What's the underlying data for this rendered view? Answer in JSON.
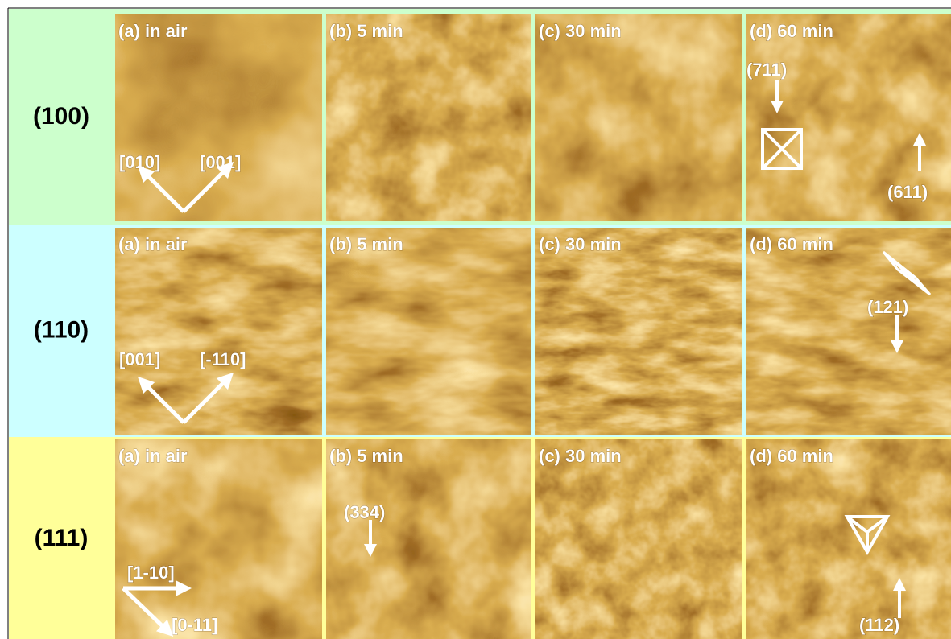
{
  "rows": [
    {
      "label": "(100)",
      "panels": [
        {
          "caption": "(a) in air",
          "annotations": [
            "[010]",
            "[001]"
          ]
        },
        {
          "caption": "(b) 5 min",
          "annotations": []
        },
        {
          "caption": "(c) 30 min",
          "annotations": []
        },
        {
          "caption": "(d) 60 min",
          "annotations": [
            "(711)",
            "(611)"
          ]
        }
      ]
    },
    {
      "label": "(110)",
      "panels": [
        {
          "caption": "(a) in air",
          "annotations": [
            "[001]",
            "[-110]"
          ]
        },
        {
          "caption": "(b) 5 min",
          "annotations": []
        },
        {
          "caption": "(c) 30 min",
          "annotations": []
        },
        {
          "caption": "(d) 60 min",
          "annotations": [
            "(121)"
          ]
        }
      ]
    },
    {
      "label": "(111)",
      "panels": [
        {
          "caption": "(a) in air",
          "annotations": [
            "[1-10]",
            "[0-11]"
          ]
        },
        {
          "caption": "(b) 5 min",
          "annotations": [
            "(334)"
          ]
        },
        {
          "caption": "(c) 30 min",
          "annotations": []
        },
        {
          "caption": "(d) 60 min",
          "annotations": [
            "(112)"
          ]
        }
      ]
    }
  ]
}
